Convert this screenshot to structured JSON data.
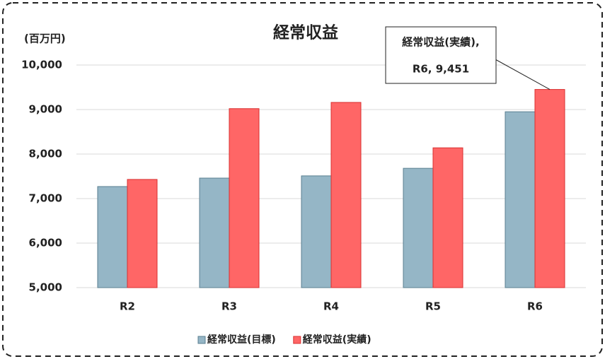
{
  "chart_data": {
    "type": "bar",
    "title": "経常収益",
    "y_unit": "(百万円)",
    "categories": [
      "R2",
      "R3",
      "R4",
      "R5",
      "R6"
    ],
    "series": [
      {
        "name": "経常収益(目標)",
        "color": "#95b6c6",
        "values": [
          7270,
          7460,
          7510,
          7680,
          8950
        ]
      },
      {
        "name": "経常収益(実績)",
        "color": "#ff6666",
        "values": [
          7430,
          9020,
          9160,
          8140,
          9451
        ]
      }
    ],
    "annotation": [
      "経常収益(実績),",
      "R6, 9,451"
    ],
    "ylim": [
      5000,
      10000
    ],
    "yticks": [
      {
        "value": 5000,
        "label": "5,000"
      },
      {
        "value": 6000,
        "label": "6,000"
      },
      {
        "value": 7000,
        "label": "7,000"
      },
      {
        "value": 8000,
        "label": "8,000"
      },
      {
        "value": 9000,
        "label": "9,000"
      },
      {
        "value": 10000,
        "label": "10,000"
      }
    ],
    "grid": true,
    "legend": "bottom"
  }
}
